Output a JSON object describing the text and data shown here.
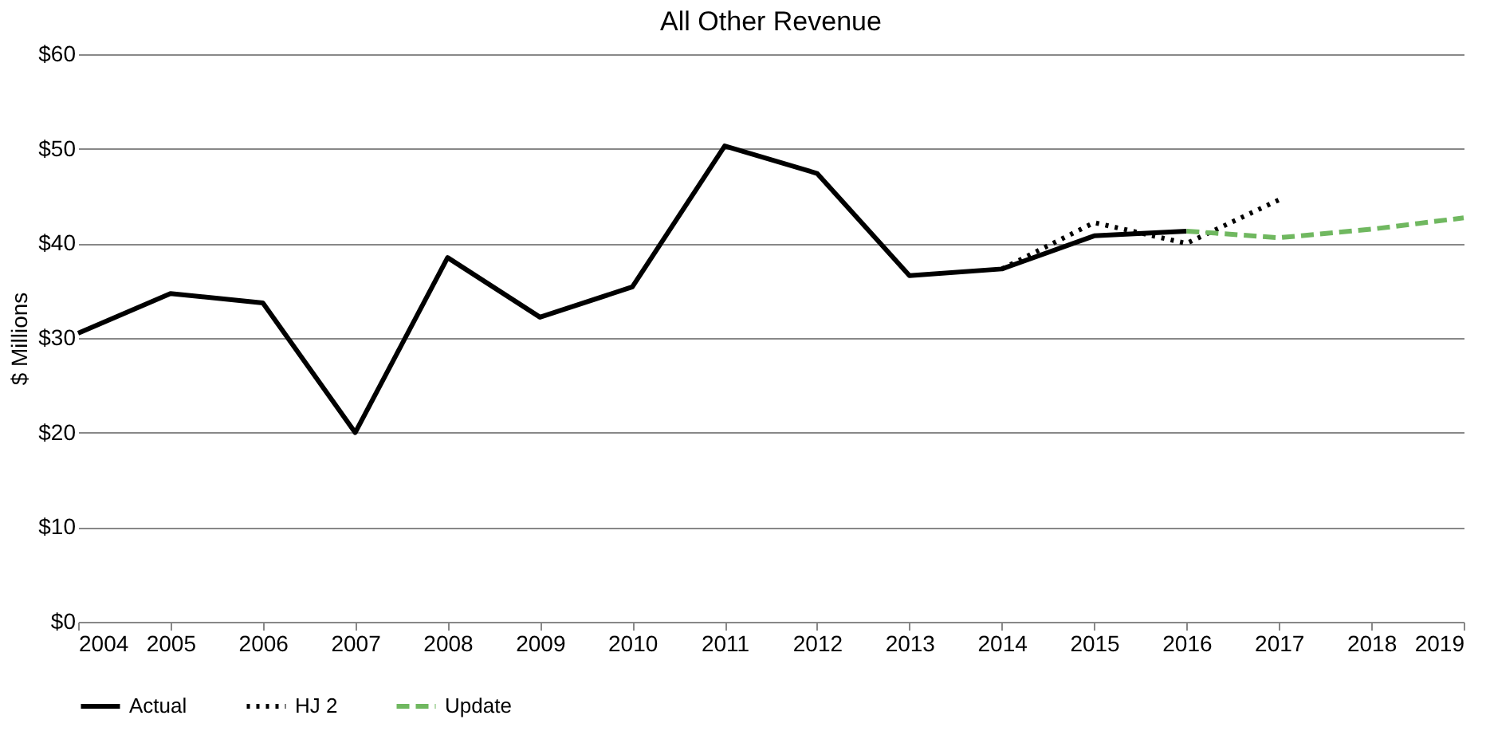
{
  "chart_data": {
    "type": "line",
    "title": "All Other Revenue",
    "ylabel": "$ Millions",
    "x": [
      2004,
      2005,
      2006,
      2007,
      2008,
      2009,
      2010,
      2011,
      2012,
      2013,
      2014,
      2015,
      2016
    ],
    "series": [
      {
        "name": "Actual",
        "color": "#000000",
        "line_style": "solid",
        "values": [
          30.5,
          34.7,
          33.7,
          20.0,
          38.5,
          32.2,
          35.4,
          50.3,
          47.4,
          36.6,
          37.3,
          40.8,
          41.3
        ]
      },
      {
        "name": "HJ 2",
        "color": "#000000",
        "line_style": "dotted",
        "x": [
          2014,
          2015,
          2016,
          2017
        ],
        "values": [
          37.3,
          42.2,
          40.0,
          44.6
        ]
      },
      {
        "name": "Update",
        "color": "#70b860",
        "line_style": "dashed",
        "x": [
          2016,
          2017,
          2018,
          2019
        ],
        "values": [
          41.3,
          40.6,
          41.5,
          42.7
        ]
      }
    ],
    "xlim": [
      2004,
      2019
    ],
    "xticks": [
      2004,
      2005,
      2006,
      2007,
      2008,
      2009,
      2010,
      2011,
      2012,
      2013,
      2014,
      2015,
      2016,
      2017,
      2018,
      2019
    ],
    "ylim": [
      0,
      60
    ],
    "yticks": [
      {
        "value": 0,
        "label": "$0"
      },
      {
        "value": 10,
        "label": "$10"
      },
      {
        "value": 20,
        "label": "$20"
      },
      {
        "value": 30,
        "label": "$30"
      },
      {
        "value": 40,
        "label": "$40"
      },
      {
        "value": 50,
        "label": "$50"
      },
      {
        "value": 60,
        "label": "$60"
      }
    ],
    "grid": "y",
    "legend": "bottom",
    "marker": "none"
  }
}
